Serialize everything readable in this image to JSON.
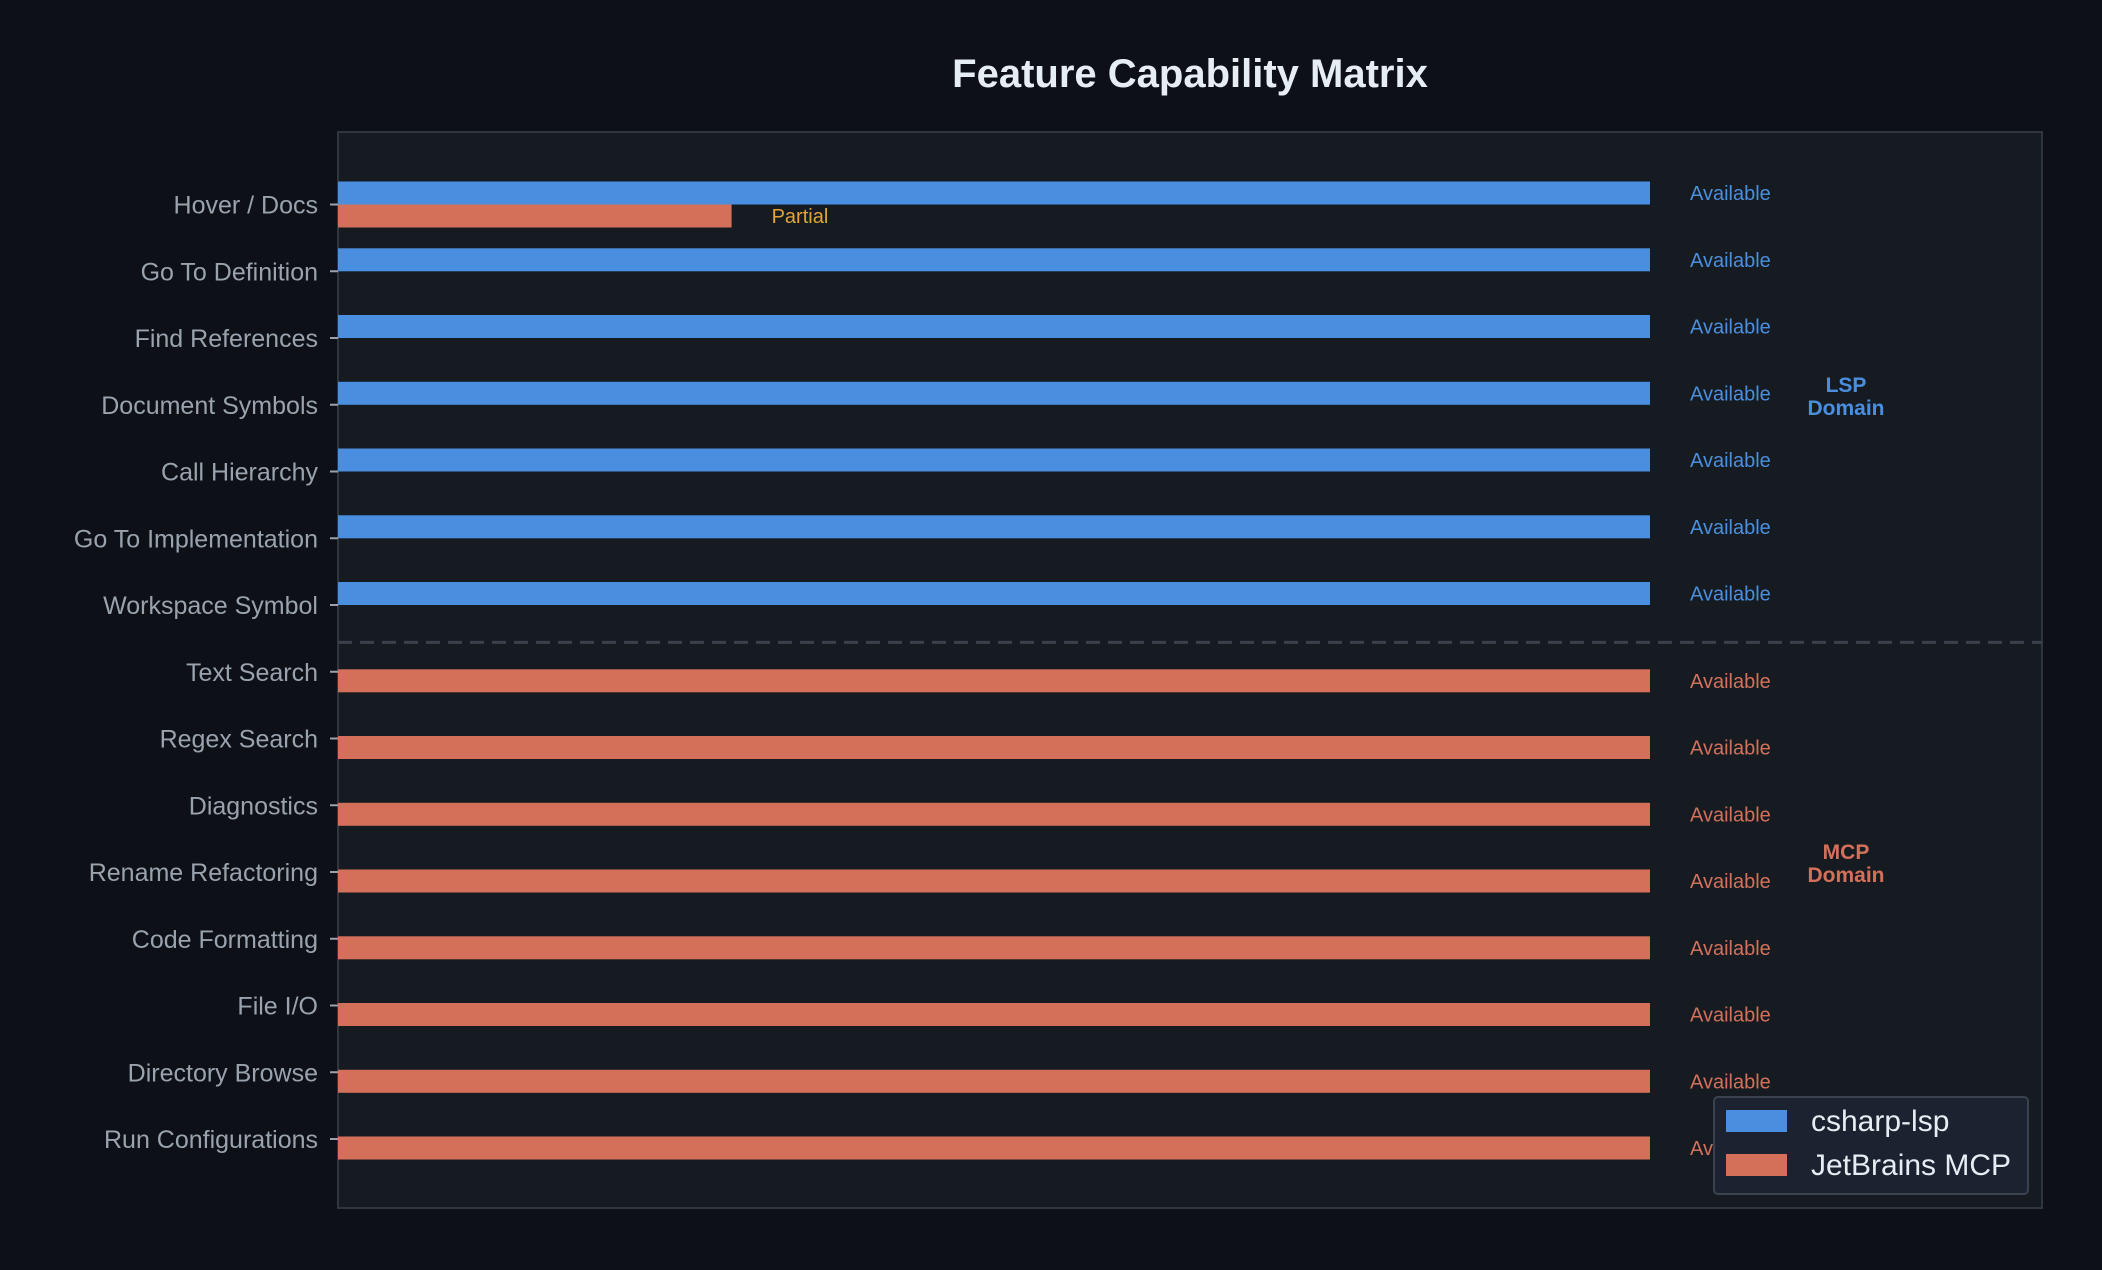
{
  "chart_data": {
    "type": "bar",
    "orientation": "horizontal",
    "title": "Feature Capability Matrix",
    "xlabel": "",
    "ylabel": "",
    "xlim": [
      0,
      1.3
    ],
    "grid": false,
    "legend_position": "lower-right",
    "categories": [
      "Hover / Docs",
      "Go To Definition",
      "Find References",
      "Document Symbols",
      "Call Hierarchy",
      "Go To Implementation",
      "Workspace Symbol",
      "Text Search",
      "Regex Search",
      "Diagnostics",
      "Rename Refactoring",
      "Code Formatting",
      "File I/O",
      "Directory Browse",
      "Run Configurations"
    ],
    "series": [
      {
        "name": "csharp-lsp",
        "color": "#4a8fdf",
        "values": [
          1,
          1,
          1,
          1,
          1,
          1,
          1,
          0,
          0,
          0,
          0,
          0,
          0,
          0,
          0
        ]
      },
      {
        "name": "JetBrains MCP",
        "color": "#d4705a",
        "values": [
          0.3,
          0,
          0,
          0,
          0,
          0,
          0,
          1,
          1,
          1,
          1,
          1,
          1,
          1,
          1
        ]
      }
    ],
    "bar_labels": [
      {
        "category": "Hover / Docs",
        "series": "csharp-lsp",
        "text": "Available",
        "color": "#4a8fdf"
      },
      {
        "category": "Hover / Docs",
        "series": "JetBrains MCP",
        "text": "Partial",
        "color": "#e3a23a"
      },
      {
        "category": "Go To Definition",
        "series": "csharp-lsp",
        "text": "Available",
        "color": "#4a8fdf"
      },
      {
        "category": "Find References",
        "series": "csharp-lsp",
        "text": "Available",
        "color": "#4a8fdf"
      },
      {
        "category": "Document Symbols",
        "series": "csharp-lsp",
        "text": "Available",
        "color": "#4a8fdf"
      },
      {
        "category": "Call Hierarchy",
        "series": "csharp-lsp",
        "text": "Available",
        "color": "#4a8fdf"
      },
      {
        "category": "Go To Implementation",
        "series": "csharp-lsp",
        "text": "Available",
        "color": "#4a8fdf"
      },
      {
        "category": "Workspace Symbol",
        "series": "csharp-lsp",
        "text": "Available",
        "color": "#4a8fdf"
      },
      {
        "category": "Text Search",
        "series": "JetBrains MCP",
        "text": "Available",
        "color": "#d4705a"
      },
      {
        "category": "Regex Search",
        "series": "JetBrains MCP",
        "text": "Available",
        "color": "#d4705a"
      },
      {
        "category": "Diagnostics",
        "series": "JetBrains MCP",
        "text": "Available",
        "color": "#d4705a"
      },
      {
        "category": "Rename Refactoring",
        "series": "JetBrains MCP",
        "text": "Available",
        "color": "#d4705a"
      },
      {
        "category": "Code Formatting",
        "series": "JetBrains MCP",
        "text": "Available",
        "color": "#d4705a"
      },
      {
        "category": "File I/O",
        "series": "JetBrains MCP",
        "text": "Available",
        "color": "#d4705a"
      },
      {
        "category": "Directory Browse",
        "series": "JetBrains MCP",
        "text": "Available",
        "color": "#d4705a"
      },
      {
        "category": "Run Configurations",
        "series": "JetBrains MCP",
        "text": "Available",
        "color": "#d4705a"
      }
    ],
    "annotations": [
      {
        "lines": [
          "LSP",
          "Domain"
        ],
        "color": "#4a8fdf",
        "category": "Document Symbols"
      },
      {
        "lines": [
          "MCP",
          "Domain"
        ],
        "color": "#d4705a",
        "category": "Rename Refactoring"
      }
    ],
    "divider": {
      "after_category": "Workspace Symbol",
      "style": "dashed"
    }
  },
  "colors": {
    "background": "#0d1117",
    "plot_background": "#161b22",
    "axis": "#30363d",
    "text": "#e6edf3",
    "tick_text": "#9aa3ad",
    "lsp": "#4a8fdf",
    "mcp": "#d4705a",
    "partial": "#e3a23a"
  }
}
